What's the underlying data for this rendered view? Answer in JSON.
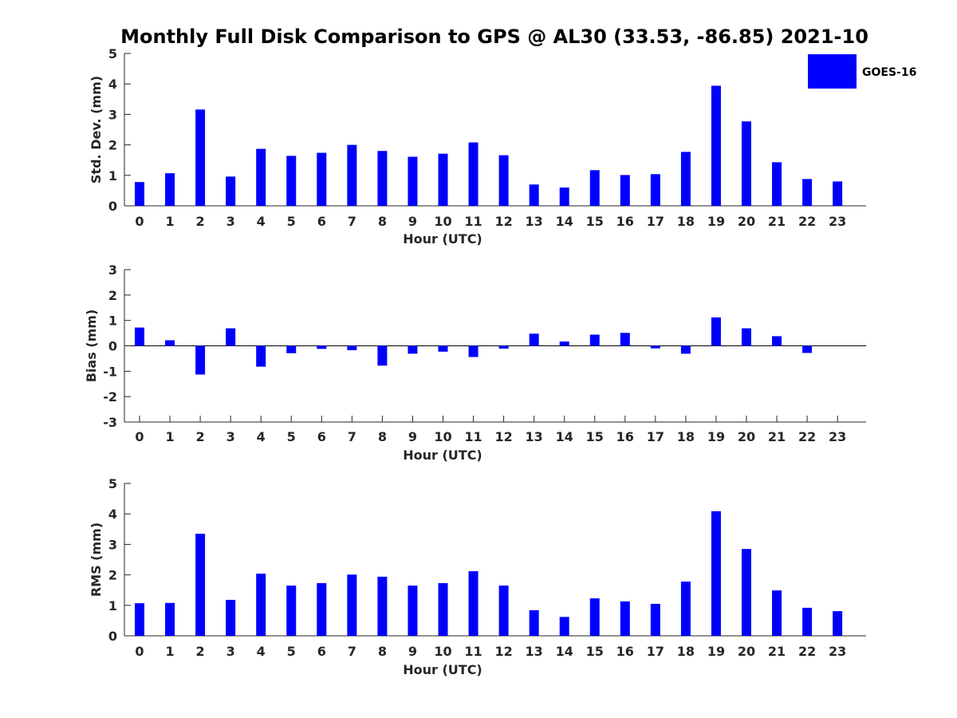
{
  "figure": {
    "title": "Monthly Full Disk Comparison to GPS @ AL30 (33.53, -86.85) 2021-10",
    "bar_color": "#0000ff",
    "axis_color": "#262626",
    "legend": {
      "label": "GOES-16"
    }
  },
  "chart_data": [
    {
      "type": "bar",
      "title": "Monthly Full Disk Comparison to GPS @ AL30 (33.53, -86.85) 2021-10",
      "xlabel": "Hour (UTC)",
      "ylabel": "Std. Dev. (mm)",
      "ylim": [
        0,
        5
      ],
      "yticks": [
        0,
        1,
        2,
        3,
        4,
        5
      ],
      "categories": [
        "0",
        "1",
        "2",
        "3",
        "4",
        "5",
        "6",
        "7",
        "8",
        "9",
        "10",
        "11",
        "12",
        "13",
        "14",
        "15",
        "16",
        "17",
        "18",
        "19",
        "20",
        "21",
        "22",
        "23"
      ],
      "legend_position": "top-right",
      "grid": false,
      "series": [
        {
          "name": "GOES-16",
          "values": [
            0.78,
            1.07,
            3.16,
            0.96,
            1.87,
            1.64,
            1.74,
            2.0,
            1.8,
            1.61,
            1.71,
            2.08,
            1.66,
            0.7,
            0.6,
            1.17,
            1.01,
            1.04,
            1.77,
            3.94,
            2.77,
            1.43,
            0.88,
            0.8
          ]
        }
      ]
    },
    {
      "type": "bar",
      "xlabel": "Hour (UTC)",
      "ylabel": "Bias (mm)",
      "ylim": [
        -3,
        3
      ],
      "yticks": [
        -3,
        -2,
        -1,
        0,
        1,
        2,
        3
      ],
      "categories": [
        "0",
        "1",
        "2",
        "3",
        "4",
        "5",
        "6",
        "7",
        "8",
        "9",
        "10",
        "11",
        "12",
        "13",
        "14",
        "15",
        "16",
        "17",
        "18",
        "19",
        "20",
        "21",
        "22",
        "23"
      ],
      "grid": false,
      "series": [
        {
          "name": "GOES-16",
          "values": [
            0.72,
            0.22,
            -1.13,
            0.69,
            -0.82,
            -0.29,
            -0.12,
            -0.17,
            -0.78,
            -0.31,
            -0.23,
            -0.44,
            -0.11,
            0.48,
            0.17,
            0.44,
            0.51,
            -0.1,
            -0.31,
            1.12,
            0.69,
            0.38,
            -0.28,
            0.0
          ]
        }
      ]
    },
    {
      "type": "bar",
      "xlabel": "Hour (UTC)",
      "ylabel": "RMS (mm)",
      "ylim": [
        0,
        5
      ],
      "yticks": [
        0,
        1,
        2,
        3,
        4,
        5
      ],
      "categories": [
        "0",
        "1",
        "2",
        "3",
        "4",
        "5",
        "6",
        "7",
        "8",
        "9",
        "10",
        "11",
        "12",
        "13",
        "14",
        "15",
        "16",
        "17",
        "18",
        "19",
        "20",
        "21",
        "22",
        "23"
      ],
      "grid": false,
      "series": [
        {
          "name": "GOES-16",
          "values": [
            1.07,
            1.08,
            3.35,
            1.18,
            2.04,
            1.65,
            1.73,
            2.01,
            1.94,
            1.65,
            1.73,
            2.12,
            1.65,
            0.84,
            0.62,
            1.23,
            1.13,
            1.05,
            1.78,
            4.09,
            2.85,
            1.49,
            0.92,
            0.81
          ]
        }
      ]
    }
  ]
}
